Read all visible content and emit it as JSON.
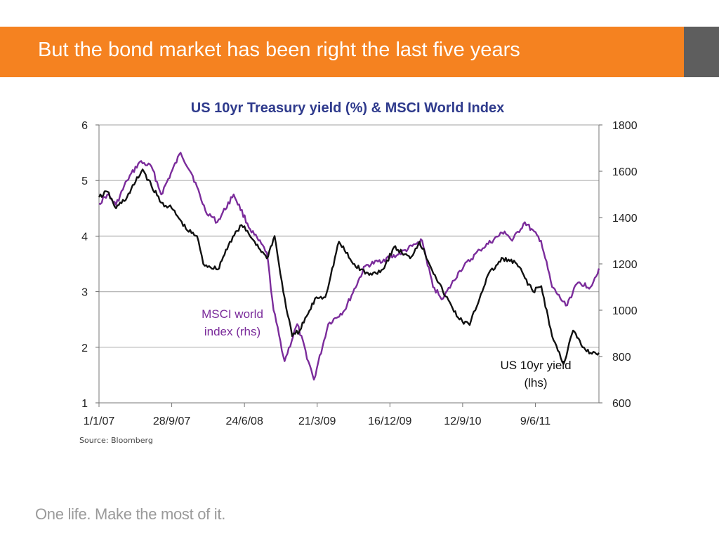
{
  "slide": {
    "title": "But the bond market has been right the last five years",
    "source": "Source: Bloomberg",
    "tagline": "One life. Make the most of it.",
    "colors": {
      "banner": "#F58220",
      "banner_side": "#5E5E5E"
    }
  },
  "chart_data": {
    "type": "line",
    "title": "US 10yr Treasury yield (%) & MSCI World Index",
    "x_tick_labels": [
      "1/1/07",
      "28/9/07",
      "24/6/08",
      "21/3/09",
      "16/12/09",
      "12/9/10",
      "9/6/11"
    ],
    "x_ticks": [
      "2007-01-01",
      "2007-09-28",
      "2008-06-24",
      "2009-03-21",
      "2009-12-16",
      "2010-09-12",
      "2011-06-09"
    ],
    "xlim": [
      "2007-01-01",
      "2012-01-31"
    ],
    "y_left": {
      "ylim": [
        1,
        6
      ],
      "ticks": [
        1,
        2,
        3,
        4,
        5,
        6
      ]
    },
    "y_right": {
      "ylim": [
        600,
        1800
      ],
      "ticks": [
        600,
        800,
        1000,
        1200,
        1400,
        1600,
        1800
      ]
    },
    "grid": true,
    "annotations": [
      {
        "lines": [
          "MSCI world",
          "index (rhs)"
        ],
        "color": "#7B2C9B"
      },
      {
        "lines": [
          "US 10yr yield",
          "(lhs)"
        ],
        "color": "#111111"
      }
    ],
    "series": [
      {
        "axis": "right",
        "color": "#7B2C9B",
        "x": [
          "2007-01-01",
          "2007-02-01",
          "2007-03-05",
          "2007-04-15",
          "2007-06-01",
          "2007-07-15",
          "2007-08-20",
          "2007-10-31",
          "2007-12-15",
          "2008-01-31",
          "2008-03-15",
          "2008-05-15",
          "2008-07-15",
          "2008-09-15",
          "2008-10-10",
          "2008-11-20",
          "2009-01-06",
          "2009-03-09",
          "2009-05-01",
          "2009-07-01",
          "2009-09-15",
          "2010-01-15",
          "2010-04-15",
          "2010-05-25",
          "2010-07-01",
          "2010-09-01",
          "2010-11-15",
          "2011-02-15",
          "2011-03-15",
          "2011-05-01",
          "2011-06-30",
          "2011-08-10",
          "2011-09-30",
          "2011-11-15",
          "2011-12-31",
          "2012-01-31"
        ],
        "values": [
          1460,
          1500,
          1455,
          1560,
          1640,
          1620,
          1500,
          1680,
          1580,
          1430,
          1380,
          1500,
          1350,
          1250,
          1000,
          780,
          940,
          700,
          940,
          1000,
          1190,
          1240,
          1300,
          1100,
          1050,
          1170,
          1260,
          1340,
          1300,
          1380,
          1300,
          1100,
          1020,
          1120,
          1100,
          1180
        ]
      },
      {
        "axis": "left",
        "color": "#111111",
        "x": [
          "2007-01-01",
          "2007-02-01",
          "2007-03-05",
          "2007-04-15",
          "2007-06-12",
          "2007-07-15",
          "2007-08-20",
          "2007-09-28",
          "2007-11-25",
          "2007-12-31",
          "2008-01-23",
          "2008-03-17",
          "2008-05-01",
          "2008-06-13",
          "2008-08-01",
          "2008-09-15",
          "2008-10-14",
          "2008-11-15",
          "2008-12-18",
          "2009-01-15",
          "2009-03-18",
          "2009-04-20",
          "2009-06-10",
          "2009-08-01",
          "2009-09-30",
          "2009-11-20",
          "2009-12-31",
          "2010-03-01",
          "2010-04-05",
          "2010-06-01",
          "2010-07-01",
          "2010-08-31",
          "2010-10-08",
          "2010-12-15",
          "2011-02-09",
          "2011-04-01",
          "2011-06-01",
          "2011-07-01",
          "2011-08-10",
          "2011-09-22",
          "2011-10-27",
          "2011-12-01",
          "2011-12-31",
          "2012-01-31"
        ],
        "values": [
          4.7,
          4.8,
          4.5,
          4.7,
          5.2,
          4.9,
          4.6,
          4.5,
          4.1,
          4.0,
          3.5,
          3.4,
          3.9,
          4.2,
          3.9,
          3.6,
          4.0,
          3.0,
          2.2,
          2.3,
          2.9,
          2.9,
          3.9,
          3.5,
          3.3,
          3.4,
          3.8,
          3.6,
          3.9,
          3.3,
          3.0,
          2.5,
          2.4,
          3.3,
          3.6,
          3.5,
          3.0,
          3.1,
          2.2,
          1.7,
          2.3,
          2.0,
          1.9,
          1.9
        ]
      }
    ]
  }
}
